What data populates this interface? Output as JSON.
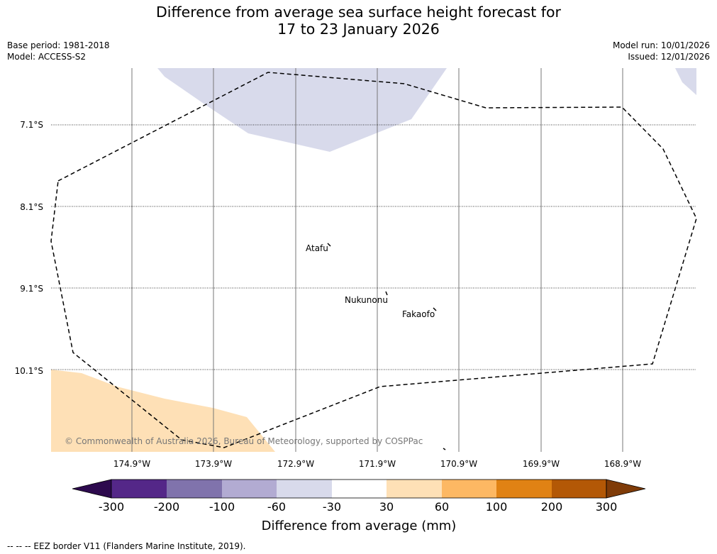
{
  "title_line1": "Difference from average sea surface height forecast for",
  "title_line2": "17 to 23 January 2026",
  "meta": {
    "base_period": "Base period: 1981-2018",
    "model": "Model: ACCESS-S2",
    "model_run": "Model run: 10/01/2026",
    "issued": "Issued: 12/01/2026"
  },
  "map": {
    "latitudes": [
      "7.1°S",
      "8.1°S",
      "9.1°S",
      "10.1°S"
    ],
    "longitudes": [
      "174.9°W",
      "173.9°W",
      "172.9°W",
      "171.9°W",
      "170.9°W",
      "169.9°W",
      "168.9°W"
    ],
    "places": [
      "Atafu",
      "Nukunonu",
      "Fakaofo"
    ],
    "copyright": "© Commonwealth of Australia 2026, Bureau of Meteorology, supported by COSPPac"
  },
  "colorbar": {
    "ticks": [
      "-300",
      "-200",
      "-100",
      "-60",
      "-30",
      "30",
      "60",
      "100",
      "200",
      "300"
    ],
    "colors": [
      "#2d0a4e",
      "#542788",
      "#8073ac",
      "#b2abd2",
      "#d8daeb",
      "#ffffff",
      "#fee0b6",
      "#fdb863",
      "#e08214",
      "#b35806",
      "#7f3b08"
    ],
    "label": "Difference from average (mm)"
  },
  "colors": {
    "negative_anomaly_fill": "#d8daeb",
    "positive_anomaly_fill": "#fee0b6",
    "eez_line": "#000000"
  },
  "footer": "--  --  -- EEZ border V11 (Flanders Marine Institute, 2019)."
}
